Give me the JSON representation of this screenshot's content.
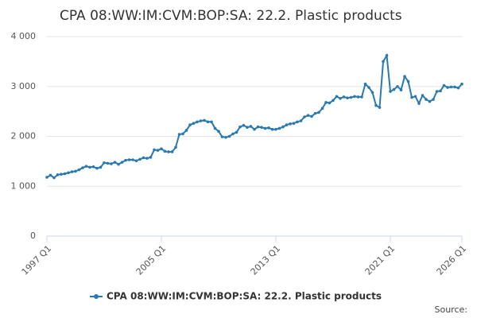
{
  "chart_data": {
    "type": "line",
    "title": "CPA 08:WW:IM:CVM:BOP:SA: 22.2. Plastic products",
    "categories": [
      "1997 Q1",
      null,
      null,
      null,
      null,
      null,
      null,
      null,
      null,
      null,
      null,
      null,
      null,
      null,
      null,
      null,
      null,
      null,
      null,
      null,
      null,
      null,
      null,
      null,
      null,
      null,
      null,
      null,
      null,
      null,
      null,
      null,
      "2005 Q1",
      null,
      null,
      null,
      null,
      null,
      null,
      null,
      null,
      null,
      null,
      null,
      null,
      null,
      null,
      null,
      null,
      null,
      null,
      null,
      null,
      null,
      null,
      null,
      null,
      null,
      null,
      null,
      null,
      null,
      null,
      null,
      "2013 Q1",
      null,
      null,
      null,
      null,
      null,
      null,
      null,
      null,
      null,
      null,
      null,
      null,
      null,
      null,
      null,
      null,
      null,
      null,
      null,
      null,
      null,
      null,
      null,
      null,
      null,
      null,
      null,
      null,
      null,
      null,
      null,
      "2021 Q1",
      null,
      null,
      null,
      null,
      null,
      null,
      null,
      null,
      null,
      null,
      null,
      null,
      null,
      null,
      null,
      null,
      null,
      null,
      null,
      "2026 Q1"
    ],
    "series": [
      {
        "name": "CPA 08:WW:IM:CVM:BOP:SA: 22.2. Plastic products",
        "color": "#2a7ab0",
        "values": [
          1180,
          1220,
          1170,
          1230,
          1240,
          1250,
          1270,
          1290,
          1300,
          1330,
          1370,
          1400,
          1380,
          1390,
          1360,
          1380,
          1470,
          1460,
          1450,
          1480,
          1440,
          1480,
          1520,
          1530,
          1530,
          1510,
          1540,
          1570,
          1560,
          1580,
          1730,
          1720,
          1750,
          1700,
          1690,
          1690,
          1780,
          2040,
          2050,
          2120,
          2230,
          2260,
          2290,
          2310,
          2320,
          2290,
          2290,
          2160,
          2100,
          1990,
          1980,
          2000,
          2050,
          2080,
          2190,
          2220,
          2180,
          2200,
          2140,
          2190,
          2180,
          2160,
          2170,
          2140,
          2140,
          2160,
          2190,
          2230,
          2250,
          2260,
          2290,
          2310,
          2390,
          2420,
          2400,
          2460,
          2480,
          2560,
          2680,
          2670,
          2720,
          2800,
          2760,
          2790,
          2770,
          2780,
          2800,
          2790,
          2790,
          3050,
          2980,
          2880,
          2620,
          2580,
          3500,
          3620,
          2900,
          2940,
          3000,
          2930,
          3200,
          3100,
          2780,
          2800,
          2660,
          2820,
          2740,
          2700,
          2740,
          2900,
          2910,
          3020,
          2980,
          2990,
          2990,
          2970,
          3050
        ]
      }
    ],
    "ylim": [
      0,
      4000
    ],
    "yticks": [
      0,
      {
        "value": 1000,
        "label": "1 000"
      },
      {
        "value": 2000,
        "label": "2 000"
      },
      {
        "value": 3000,
        "label": "3 000"
      },
      {
        "value": 4000,
        "label": "4 000"
      }
    ],
    "grid": true,
    "legend": "bottom",
    "source_label": "Source:"
  }
}
